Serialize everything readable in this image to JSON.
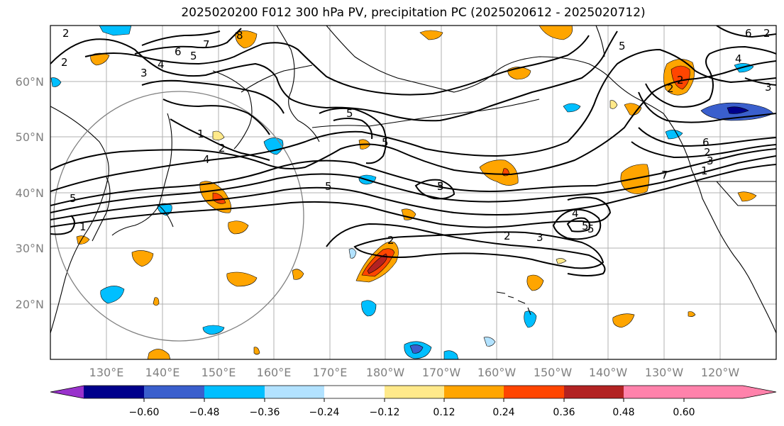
{
  "title": "2025020200 F012 300 hPa PV, precipitation PC (2025020612 - 2025020712)",
  "lat_labels": [
    "60°N",
    "50°N",
    "40°N",
    "30°N",
    "20°N"
  ],
  "lon_labels": [
    "130°E",
    "140°E",
    "150°E",
    "160°E",
    "170°E",
    "180°W",
    "170°W",
    "160°W",
    "150°W",
    "140°W",
    "130°W",
    "120°W"
  ],
  "colorbar": {
    "ticks": [
      "−0.60",
      "−0.48",
      "−0.36",
      "−0.24",
      "−0.12",
      "0.12",
      "0.24",
      "0.36",
      "0.48",
      "0.60"
    ],
    "colors": [
      "#9932cc",
      "#00008b",
      "#3a5fcd",
      "#00bfff",
      "#b2e2ff",
      "#ffffff",
      "#ffe98a",
      "#ffa500",
      "#ff4500",
      "#b22222",
      "#ff82ab"
    ]
  },
  "contour_labels": [
    "2",
    "8",
    "7",
    "6",
    "5",
    "4",
    "3",
    "2",
    "5",
    "5",
    "1",
    "2",
    "4",
    "5",
    "5",
    "5",
    "3",
    "5",
    "4",
    "5",
    "2",
    "3",
    "2",
    "5",
    "6",
    "7",
    "2",
    "1",
    "2",
    "3",
    "4",
    "6",
    "2",
    "3",
    "2",
    "1"
  ]
}
